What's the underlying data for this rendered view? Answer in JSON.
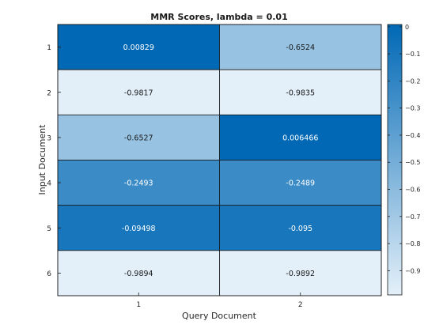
{
  "chart_data": {
    "type": "heatmap",
    "title": "MMR Scores, lambda = 0.01",
    "xlabel": "Query Document",
    "ylabel": "Input Document",
    "x_categories": [
      "1",
      "2"
    ],
    "y_categories": [
      "1",
      "2",
      "3",
      "4",
      "5",
      "6"
    ],
    "values": [
      [
        0.00829,
        -0.6524
      ],
      [
        -0.9817,
        -0.9835
      ],
      [
        -0.6527,
        0.006466
      ],
      [
        -0.2493,
        -0.2489
      ],
      [
        -0.09498,
        -0.095
      ],
      [
        -0.9894,
        -0.9892
      ]
    ],
    "cell_labels": [
      [
        "0.00829",
        "-0.6524"
      ],
      [
        "-0.9817",
        "-0.9835"
      ],
      [
        "-0.6527",
        "0.006466"
      ],
      [
        "-0.2493",
        "-0.2489"
      ],
      [
        "-0.09498",
        "-0.095"
      ],
      [
        "-0.9894",
        "-0.9892"
      ]
    ],
    "colorbar": {
      "range": [
        -0.9894,
        0.00829
      ],
      "ticks": [
        0,
        -0.1,
        -0.2,
        -0.3,
        -0.4,
        -0.5,
        -0.6,
        -0.7,
        -0.8,
        -0.9
      ],
      "tick_labels": [
        "0",
        "−0.1",
        "−0.2",
        "−0.3",
        "−0.4",
        "−0.5",
        "−0.6",
        "−0.7",
        "−0.8",
        "−0.9"
      ],
      "color_low": "#e4f0f9",
      "color_high": "#0068b5"
    },
    "grid": true
  }
}
